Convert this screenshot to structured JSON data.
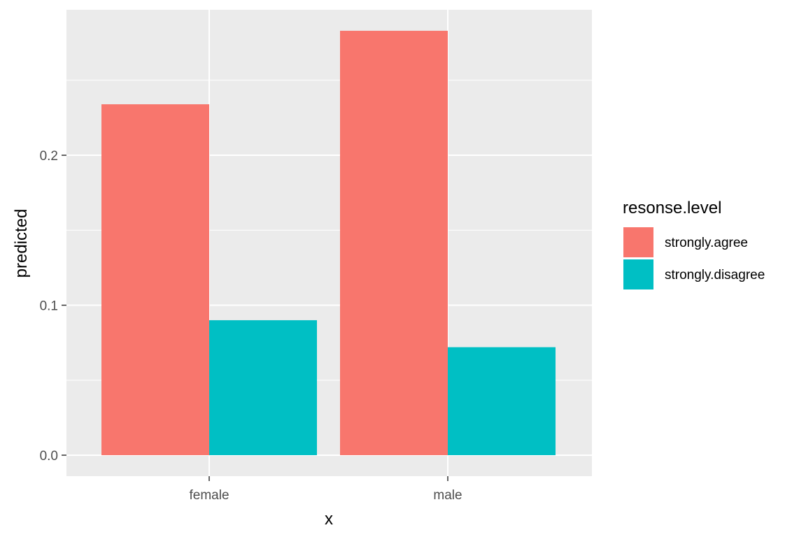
{
  "chart_data": {
    "type": "bar",
    "categories": [
      "female",
      "male"
    ],
    "series": [
      {
        "name": "strongly.agree",
        "values": [
          0.234,
          0.283
        ],
        "color": "#F8766D"
      },
      {
        "name": "strongly.disagree",
        "values": [
          0.09,
          0.072
        ],
        "color": "#00BFC4"
      }
    ],
    "xlabel": "x",
    "ylabel": "predicted",
    "ylim": [
      -0.014,
      0.297
    ],
    "yticks": [
      0.0,
      0.1,
      0.2
    ],
    "ytick_labels": [
      "0.0",
      "0.1",
      "0.2"
    ],
    "yminor": [
      0.05,
      0.15,
      0.25
    ],
    "legend_title": "resonse.level",
    "legend_position": "right",
    "grid": true,
    "panel_background": "#EBEBEB",
    "grid_color": "#FFFFFF"
  }
}
